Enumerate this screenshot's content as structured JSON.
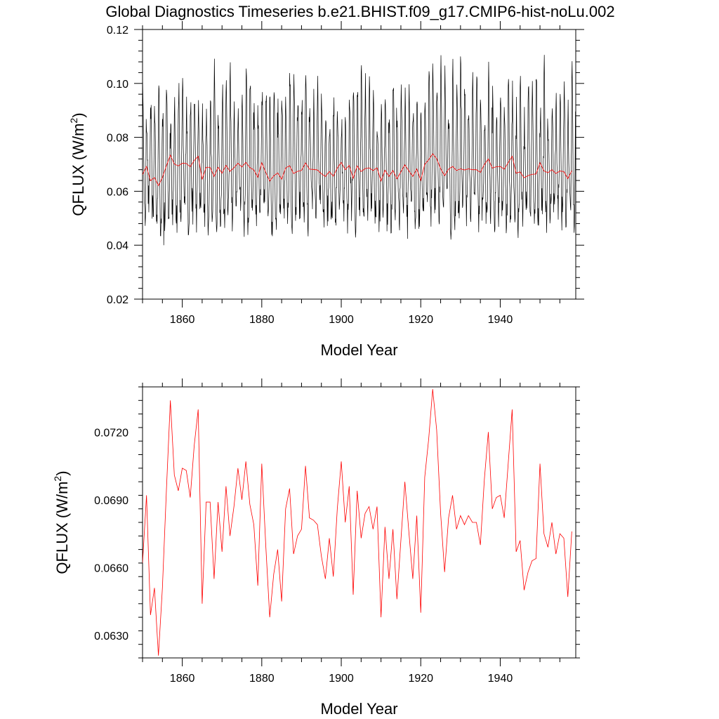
{
  "page_title": "Global Diagnostics Timeseries b.e21.BHIST.f09_g17.CMIP6-hist-noLu.002",
  "colors": {
    "monthly": "#000000",
    "annual": "#ff0000",
    "axis": "#000000",
    "background": "#ffffff"
  },
  "chart_data": [
    {
      "type": "line",
      "title": "Global Diagnostics Timeseries b.e21.BHIST.f09_g17.CMIP6-hist-noLu.002",
      "xlabel": "Model Year",
      "ylabel_main": "QFLUX (W/m",
      "ylabel_sup": "2",
      "ylabel_close": ")",
      "xlim": [
        1850,
        1959
      ],
      "ylim": [
        0.02,
        0.12
      ],
      "xticks": [
        1860,
        1880,
        1900,
        1920,
        1940
      ],
      "xtick_labels": [
        "1860",
        "1880",
        "1900",
        "1920",
        "1940"
      ],
      "yticks": [
        0.02,
        0.04,
        0.06,
        0.08,
        0.1,
        0.12
      ],
      "ytick_labels": [
        "0.02",
        "0.04",
        "0.06",
        "0.08",
        "0.10",
        "0.12"
      ],
      "grid": false,
      "series": [
        {
          "style": "monthly-seasonal",
          "color": "#000000",
          "x_start": 1850,
          "x_end": 1959,
          "samples_per_year": 12,
          "seasonal_min_range": [
            0.048,
            0.056
          ],
          "seasonal_max_range": [
            0.085,
            0.106
          ],
          "extremes": {
            "min": 0.04,
            "max": 0.11
          }
        },
        {
          "style": "annual-mean",
          "color": "#ff0000",
          "x_start": 1850,
          "values": "same as panel 2"
        }
      ]
    },
    {
      "type": "line",
      "xlabel": "Model Year",
      "ylabel_main": "QFLUX (W/m",
      "ylabel_sup": "2",
      "ylabel_close": ")",
      "xlim": [
        1850,
        1959
      ],
      "ylim": [
        0.062,
        0.074
      ],
      "xticks": [
        1860,
        1880,
        1900,
        1920,
        1940
      ],
      "xtick_labels": [
        "1860",
        "1880",
        "1900",
        "1920",
        "1940"
      ],
      "yticks": [
        0.063,
        0.066,
        0.069,
        0.072
      ],
      "ytick_labels": [
        "0.0630",
        "0.0660",
        "0.0690",
        "0.0720"
      ],
      "grid": false,
      "series": [
        {
          "color": "#ff0000",
          "x_start": 1850,
          "values": [
            0.0662,
            0.0692,
            0.0639,
            0.0651,
            0.0621,
            0.0651,
            0.0694,
            0.0734,
            0.0701,
            0.0694,
            0.0704,
            0.0703,
            0.0691,
            0.0714,
            0.073,
            0.0644,
            0.0689,
            0.0689,
            0.0655,
            0.0689,
            0.0667,
            0.0696,
            0.0674,
            0.0687,
            0.0704,
            0.069,
            0.0707,
            0.0688,
            0.0679,
            0.0652,
            0.0706,
            0.067,
            0.0638,
            0.0657,
            0.0668,
            0.0645,
            0.0686,
            0.0695,
            0.0666,
            0.0674,
            0.0677,
            0.0705,
            0.0682,
            0.0681,
            0.0679,
            0.0665,
            0.0655,
            0.0673,
            0.0656,
            0.0686,
            0.0707,
            0.068,
            0.0696,
            0.0648,
            0.0694,
            0.0673,
            0.0684,
            0.0687,
            0.0677,
            0.0687,
            0.0638,
            0.0678,
            0.0655,
            0.0677,
            0.0646,
            0.0672,
            0.0698,
            0.0676,
            0.0655,
            0.0683,
            0.064,
            0.07,
            0.0717,
            0.0739,
            0.0721,
            0.0684,
            0.0658,
            0.0682,
            0.0692,
            0.0677,
            0.0683,
            0.0679,
            0.0683,
            0.068,
            0.068,
            0.067,
            0.0699,
            0.072,
            0.0686,
            0.0691,
            0.0692,
            0.0682,
            0.0706,
            0.073,
            0.0667,
            0.0672,
            0.065,
            0.0658,
            0.0663,
            0.0664,
            0.0706,
            0.0675,
            0.0669,
            0.068,
            0.0666,
            0.0675,
            0.0673,
            0.0647,
            0.0676
          ]
        }
      ]
    }
  ]
}
